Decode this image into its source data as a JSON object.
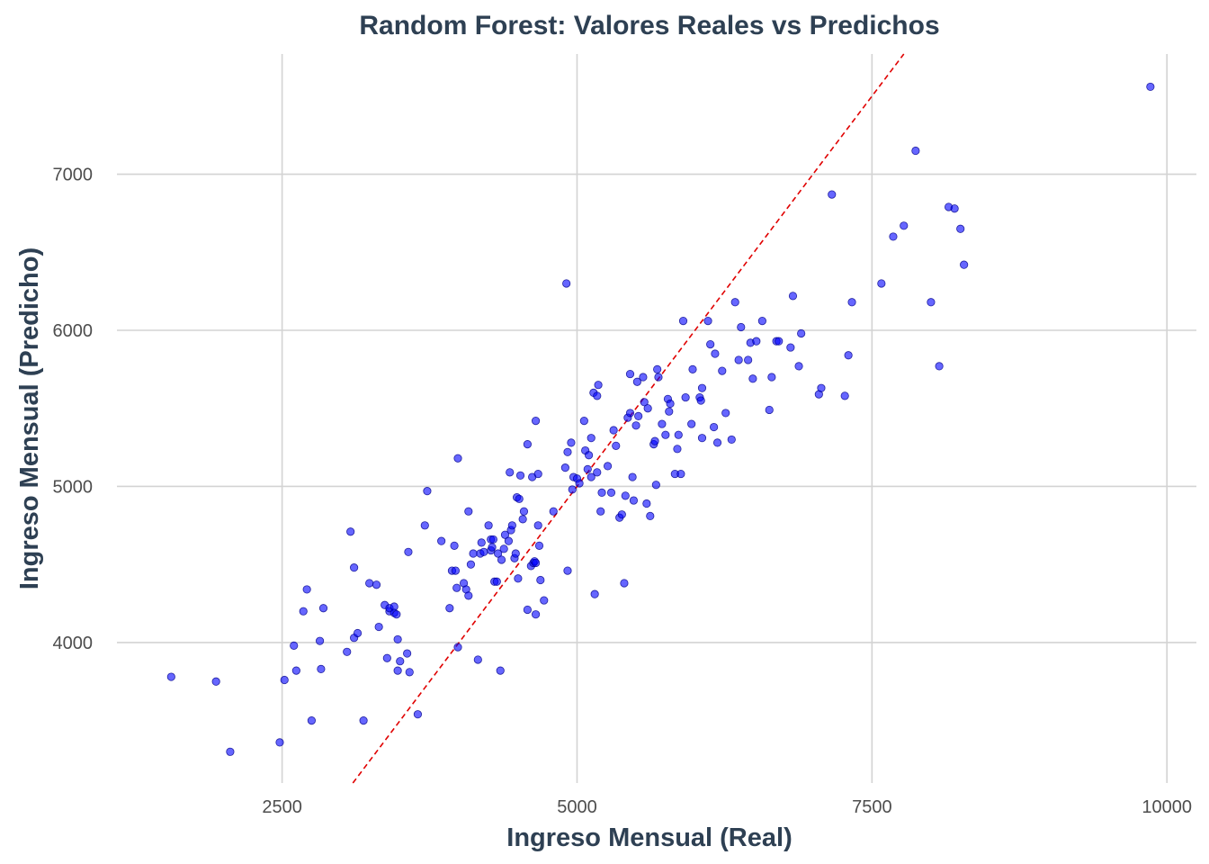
{
  "chart_data": {
    "type": "scatter",
    "title": "Random Forest: Valores Reales vs Predichos",
    "xlabel": "Ingreso Mensual (Real)",
    "ylabel": "Ingreso Mensual (Predicho)",
    "xlim": [
      1100,
      10250
    ],
    "ylim": [
      3100,
      7770
    ],
    "x_ticks": [
      2500,
      5000,
      7500,
      10000
    ],
    "y_ticks": [
      4000,
      5000,
      6000,
      7000
    ],
    "x_tick_labels": [
      "2500",
      "5000",
      "7500",
      "10000"
    ],
    "y_tick_labels": [
      "4000",
      "5000",
      "6000",
      "7000"
    ],
    "grid": true,
    "reference_line": {
      "slope": 1,
      "intercept": 0,
      "color": "#E00000",
      "style": "dashed"
    },
    "point_color": "#0000FF",
    "points": [
      [
        1560,
        3780
      ],
      [
        1940,
        3750
      ],
      [
        2060,
        3300
      ],
      [
        2480,
        3360
      ],
      [
        2520,
        3760
      ],
      [
        2600,
        3980
      ],
      [
        2620,
        3820
      ],
      [
        2680,
        4200
      ],
      [
        2710,
        4340
      ],
      [
        2750,
        3500
      ],
      [
        2820,
        4010
      ],
      [
        2830,
        3830
      ],
      [
        2850,
        4220
      ],
      [
        3050,
        3940
      ],
      [
        3080,
        4710
      ],
      [
        3110,
        4480
      ],
      [
        3110,
        4030
      ],
      [
        3140,
        4060
      ],
      [
        3190,
        3500
      ],
      [
        3240,
        4380
      ],
      [
        3300,
        4370
      ],
      [
        3320,
        4100
      ],
      [
        3370,
        4240
      ],
      [
        3390,
        3900
      ],
      [
        3410,
        4200
      ],
      [
        3410,
        4220
      ],
      [
        3450,
        4230
      ],
      [
        3450,
        4190
      ],
      [
        3470,
        4180
      ],
      [
        3480,
        3820
      ],
      [
        3480,
        4020
      ],
      [
        3500,
        3880
      ],
      [
        3560,
        3930
      ],
      [
        3570,
        4580
      ],
      [
        3580,
        3810
      ],
      [
        3650,
        3540
      ],
      [
        3710,
        4750
      ],
      [
        3730,
        4970
      ],
      [
        3850,
        4650
      ],
      [
        3920,
        4220
      ],
      [
        3940,
        4460
      ],
      [
        3960,
        4620
      ],
      [
        3970,
        4460
      ],
      [
        3980,
        4350
      ],
      [
        3990,
        3970
      ],
      [
        3990,
        5180
      ],
      [
        4040,
        4380
      ],
      [
        4060,
        4340
      ],
      [
        4080,
        4840
      ],
      [
        4080,
        4300
      ],
      [
        4100,
        4500
      ],
      [
        4120,
        4570
      ],
      [
        4160,
        3890
      ],
      [
        4180,
        4570
      ],
      [
        4190,
        4640
      ],
      [
        4210,
        4580
      ],
      [
        4250,
        4750
      ],
      [
        4270,
        4590
      ],
      [
        4270,
        4660
      ],
      [
        4280,
        4610
      ],
      [
        4290,
        4660
      ],
      [
        4300,
        4390
      ],
      [
        4320,
        4390
      ],
      [
        4330,
        4570
      ],
      [
        4350,
        3820
      ],
      [
        4360,
        4530
      ],
      [
        4380,
        4600
      ],
      [
        4390,
        4690
      ],
      [
        4420,
        4650
      ],
      [
        4430,
        5090
      ],
      [
        4440,
        4720
      ],
      [
        4450,
        4750
      ],
      [
        4470,
        4540
      ],
      [
        4480,
        4570
      ],
      [
        4490,
        4930
      ],
      [
        4500,
        4410
      ],
      [
        4510,
        4920
      ],
      [
        4520,
        5070
      ],
      [
        4540,
        4790
      ],
      [
        4550,
        4840
      ],
      [
        4580,
        5270
      ],
      [
        4580,
        4210
      ],
      [
        4610,
        4490
      ],
      [
        4620,
        5060
      ],
      [
        4630,
        4510
      ],
      [
        4640,
        4520
      ],
      [
        4650,
        4510
      ],
      [
        4650,
        4180
      ],
      [
        4650,
        5420
      ],
      [
        4670,
        5080
      ],
      [
        4670,
        4750
      ],
      [
        4680,
        4620
      ],
      [
        4690,
        4400
      ],
      [
        4720,
        4270
      ],
      [
        4800,
        4840
      ],
      [
        4900,
        5120
      ],
      [
        4910,
        6300
      ],
      [
        4920,
        5220
      ],
      [
        4920,
        4460
      ],
      [
        4950,
        5280
      ],
      [
        4960,
        4980
      ],
      [
        4970,
        5060
      ],
      [
        5000,
        5050
      ],
      [
        5020,
        5020
      ],
      [
        5060,
        5420
      ],
      [
        5070,
        5230
      ],
      [
        5090,
        5110
      ],
      [
        5100,
        5200
      ],
      [
        5120,
        5310
      ],
      [
        5120,
        5060
      ],
      [
        5140,
        5600
      ],
      [
        5150,
        4310
      ],
      [
        5170,
        5580
      ],
      [
        5170,
        5090
      ],
      [
        5180,
        5650
      ],
      [
        5200,
        4840
      ],
      [
        5210,
        4960
      ],
      [
        5260,
        5130
      ],
      [
        5290,
        4960
      ],
      [
        5310,
        5360
      ],
      [
        5330,
        5260
      ],
      [
        5360,
        4800
      ],
      [
        5380,
        4820
      ],
      [
        5400,
        4380
      ],
      [
        5410,
        4940
      ],
      [
        5430,
        5440
      ],
      [
        5450,
        5720
      ],
      [
        5450,
        5470
      ],
      [
        5470,
        5060
      ],
      [
        5480,
        4910
      ],
      [
        5500,
        5390
      ],
      [
        5510,
        5670
      ],
      [
        5520,
        5450
      ],
      [
        5560,
        5700
      ],
      [
        5570,
        5540
      ],
      [
        5590,
        4890
      ],
      [
        5600,
        5500
      ],
      [
        5620,
        4810
      ],
      [
        5650,
        5270
      ],
      [
        5660,
        5290
      ],
      [
        5670,
        5010
      ],
      [
        5680,
        5750
      ],
      [
        5690,
        5700
      ],
      [
        5720,
        5400
      ],
      [
        5750,
        5330
      ],
      [
        5770,
        5560
      ],
      [
        5780,
        5480
      ],
      [
        5790,
        5530
      ],
      [
        5830,
        5080
      ],
      [
        5850,
        5240
      ],
      [
        5860,
        5330
      ],
      [
        5880,
        5080
      ],
      [
        5900,
        6060
      ],
      [
        5920,
        5570
      ],
      [
        5970,
        5400
      ],
      [
        5980,
        5750
      ],
      [
        6040,
        5570
      ],
      [
        6050,
        5550
      ],
      [
        6060,
        5630
      ],
      [
        6060,
        5310
      ],
      [
        6110,
        6060
      ],
      [
        6130,
        5910
      ],
      [
        6160,
        5380
      ],
      [
        6170,
        5850
      ],
      [
        6190,
        5280
      ],
      [
        6230,
        5740
      ],
      [
        6260,
        5470
      ],
      [
        6310,
        5300
      ],
      [
        6340,
        6180
      ],
      [
        6370,
        5810
      ],
      [
        6390,
        6020
      ],
      [
        6450,
        5810
      ],
      [
        6470,
        5920
      ],
      [
        6490,
        5690
      ],
      [
        6520,
        5930
      ],
      [
        6570,
        6060
      ],
      [
        6630,
        5490
      ],
      [
        6650,
        5700
      ],
      [
        6690,
        5930
      ],
      [
        6710,
        5930
      ],
      [
        6810,
        5890
      ],
      [
        6830,
        6220
      ],
      [
        6880,
        5770
      ],
      [
        6900,
        5980
      ],
      [
        7050,
        5590
      ],
      [
        7070,
        5630
      ],
      [
        7160,
        6870
      ],
      [
        7270,
        5580
      ],
      [
        7300,
        5840
      ],
      [
        7330,
        6180
      ],
      [
        7580,
        6300
      ],
      [
        7680,
        6600
      ],
      [
        7770,
        6670
      ],
      [
        7870,
        7150
      ],
      [
        8000,
        6180
      ],
      [
        8070,
        5770
      ],
      [
        8150,
        6790
      ],
      [
        8200,
        6780
      ],
      [
        8250,
        6650
      ],
      [
        8280,
        6420
      ],
      [
        9860,
        7560
      ]
    ]
  }
}
